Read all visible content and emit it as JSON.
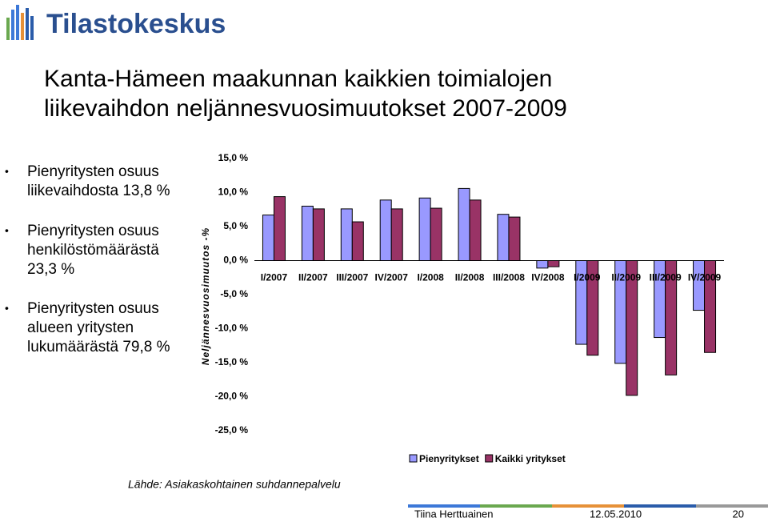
{
  "logo": {
    "text": "Tilastokeskus"
  },
  "title": [
    "Kanta-Hämeen maakunnan kaikkien toimialojen",
    "liikevaihdon neljännesvuosimuutokset 2007-2009"
  ],
  "bullets": [
    [
      "Pienyritysten osuus",
      "liikevaihdosta 13,8 %"
    ],
    [
      "Pienyritysten osuus",
      "henkilöstömäärästä",
      "23,3 %"
    ],
    [
      "Pienyritysten osuus",
      "alueen yritysten",
      "lukumäärästä 79,8 %"
    ]
  ],
  "source": "Lähde: Asiakaskohtainen suhdannepalvelu",
  "footer": {
    "author": "Tiina Herttuainen",
    "date": "12.05.2010",
    "page": "20"
  },
  "chart_data": {
    "type": "bar",
    "y_label": "Neljännesvuosimuutos -%",
    "categories": [
      "I/2007",
      "II/2007",
      "III/2007",
      "IV/2007",
      "I/2008",
      "II/2008",
      "III/2008",
      "IV/2008",
      "I/2009",
      "II/2009",
      "III/2009",
      "IV/2009"
    ],
    "series": [
      {
        "name": "Pienyritykset",
        "color": "#9999ff",
        "values": [
          6.7,
          8.0,
          7.6,
          8.9,
          9.2,
          10.6,
          6.8,
          -1.1,
          -12.3,
          -15.1,
          -11.3,
          -7.3
        ]
      },
      {
        "name": "Kaikki yritykset",
        "color": "#993366",
        "values": [
          9.4,
          7.6,
          5.7,
          7.6,
          7.7,
          8.9,
          6.4,
          -0.9,
          -13.9,
          -19.8,
          -16.8,
          -13.5
        ]
      }
    ],
    "ylim": [
      -25,
      15
    ],
    "yticks": [
      {
        "value": 15,
        "label": "15,0 %"
      },
      {
        "value": 10,
        "label": "10,0 %"
      },
      {
        "value": 5,
        "label": "5,0 %"
      },
      {
        "value": 0,
        "label": "0,0 %"
      },
      {
        "value": -5,
        "label": "-5,0 %"
      },
      {
        "value": -10,
        "label": "-10,0 %"
      },
      {
        "value": -15,
        "label": "-15,0 %"
      },
      {
        "value": -20,
        "label": "-20,0 %"
      },
      {
        "value": -25,
        "label": "-25,0 %"
      }
    ],
    "legend": "bottom"
  }
}
